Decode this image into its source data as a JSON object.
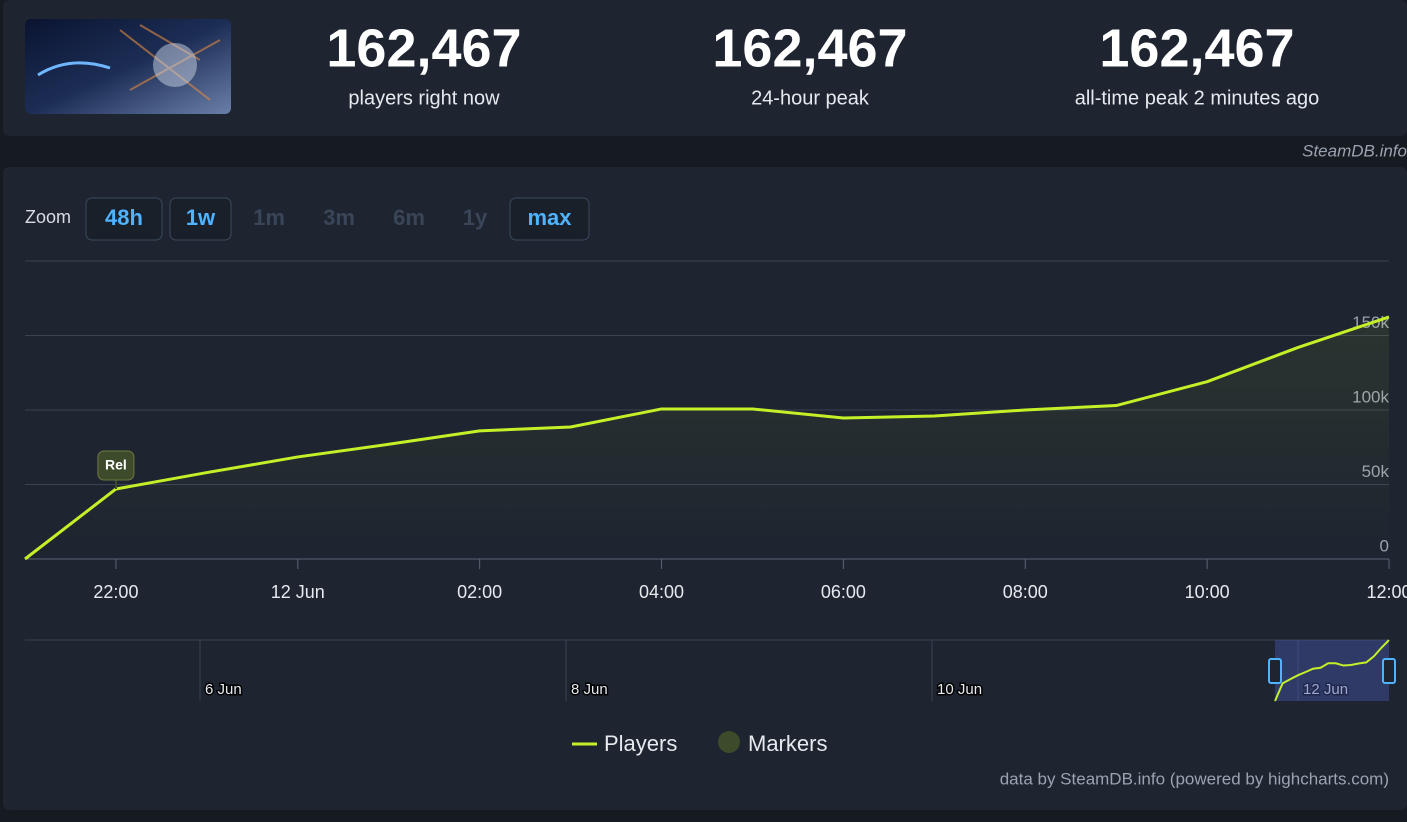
{
  "header": {
    "stats": [
      {
        "value": "162,467",
        "label": "players right now"
      },
      {
        "value": "162,467",
        "label": "24-hour peak"
      },
      {
        "value": "162,467",
        "label": "all-time peak 2 minutes ago"
      }
    ],
    "watermark": "SteamDB.info"
  },
  "zoom": {
    "label": "Zoom",
    "buttons": [
      {
        "label": "48h",
        "enabled": true
      },
      {
        "label": "1w",
        "enabled": true
      },
      {
        "label": "1m",
        "enabled": false
      },
      {
        "label": "3m",
        "enabled": false
      },
      {
        "label": "6m",
        "enabled": false
      },
      {
        "label": "1y",
        "enabled": false
      },
      {
        "label": "max",
        "enabled": true
      }
    ]
  },
  "chart_data": {
    "type": "line",
    "categories": [
      null,
      "22:00",
      null,
      "12 Jun",
      null,
      "02:00",
      null,
      "04:00",
      null,
      "06:00",
      null,
      "08:00",
      null,
      "10:00",
      null,
      "12:00"
    ],
    "series": [
      {
        "name": "Players",
        "color": "#c4f028",
        "values": [
          0,
          47000,
          58000,
          68500,
          77000,
          86000,
          88600,
          100700,
          100700,
          94600,
          96000,
          100000,
          103000,
          119000,
          142000,
          162467
        ]
      }
    ],
    "ylim": [
      0,
      200000
    ],
    "yticks": [
      0,
      {
        "value": 50000,
        "label": "50k"
      },
      {
        "value": 100000,
        "label": "100k"
      },
      {
        "value": 150000,
        "label": "150k"
      }
    ],
    "grid": true,
    "markers": [
      {
        "label": "Rel",
        "x": "22:00"
      }
    ],
    "marker_legend": "Markers",
    "marker_color": "#3e4b2b",
    "navigator_ticks": [
      "6 Jun",
      "8 Jun",
      "10 Jun",
      "12 Jun"
    ],
    "credits": "data by SteamDB.info (powered by highcharts.com)"
  }
}
